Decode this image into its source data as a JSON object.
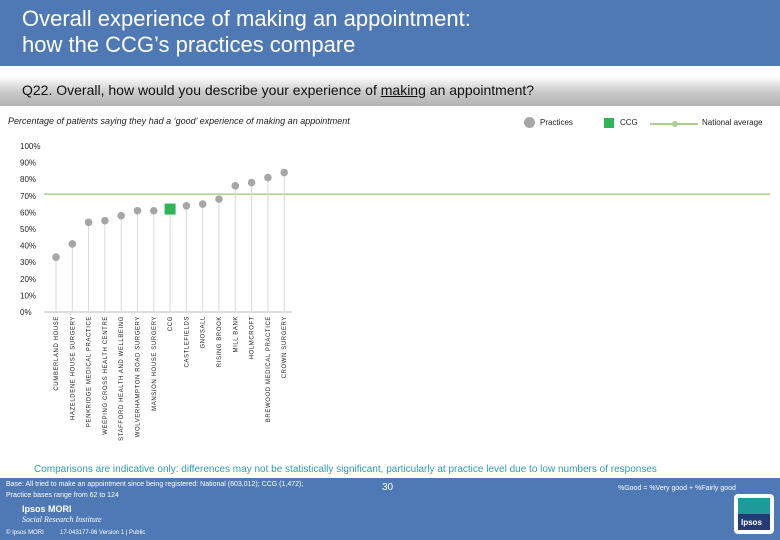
{
  "header": {
    "title_line1": "Overall experience of making an appointment:",
    "title_line2": "how the CCG’s practices compare"
  },
  "question": {
    "prefix": "Q22. Overall, how would you describe your experience of ",
    "underlined": "making",
    "suffix": " an appointment?"
  },
  "subtitle": "Percentage of patients saying they had a ‘good’ experience of making an appointment",
  "legend": {
    "practices": "Practices",
    "ccg": "CCG",
    "national": "National average"
  },
  "colors": {
    "practice_marker": "#a6a6a6",
    "ccg_marker": "#2fb45a",
    "national_line": "#a9d08e",
    "header_blue": "#4f79b4",
    "note_teal": "#2e9bb5"
  },
  "chart_data": {
    "type": "scatter",
    "title": "Percentage of patients saying they had a ‘good’ experience of making an appointment",
    "xlabel": "",
    "ylabel": "",
    "ylim": [
      0,
      100
    ],
    "yticks": [
      0,
      10,
      20,
      30,
      40,
      50,
      60,
      70,
      80,
      90,
      100
    ],
    "ytick_labels": [
      "0%",
      "10%",
      "20%",
      "30%",
      "40%",
      "50%",
      "60%",
      "70%",
      "80%",
      "90%",
      "100%"
    ],
    "national_average": 71,
    "categories": [
      "CUMBERLAND HOUSE",
      "HAZELDENE HOUSE SURGERY",
      "PENKRIDGE MEDICAL PRACTICE",
      "WEEPING CROSS HEALTH CENTRE",
      "STAFFORD HEALTH AND WELLBEING",
      "WOLVERHAMPTON ROAD SURGERY",
      "MANSION HOUSE SURGERY",
      "CCG",
      "CASTLEFIELDS",
      "GNOSALL",
      "RISING BROOK",
      "MILL BANK",
      "HOLMCROFT",
      "BREWOOD MEDICAL PRACTICE",
      "CROWN SURGERY"
    ],
    "values": [
      33,
      41,
      54,
      55,
      58,
      61,
      61,
      62,
      64,
      65,
      68,
      76,
      78,
      81,
      84
    ],
    "is_ccg": [
      false,
      false,
      false,
      false,
      false,
      false,
      false,
      true,
      false,
      false,
      false,
      false,
      false,
      false,
      false
    ]
  },
  "note": "Comparisons are indicative only: differences may not be statistically significant, particularly at practice level due to low numbers of responses",
  "footer": {
    "base_line1": "Base: All tried to make an appointment since being registered: National (603,012); CCG (1,472);",
    "base_line2": "Practice bases range from 62 to 124",
    "good_definition": "%Good = %Very good + %Fairly good",
    "page_number": "30",
    "logo_line1": "Ipsos MORI",
    "logo_line2": "Social Research Institute",
    "copyright": "© Ipsos MORI",
    "version": "17-043177-06 Version 1 | Public",
    "badge": "Ipsos"
  }
}
